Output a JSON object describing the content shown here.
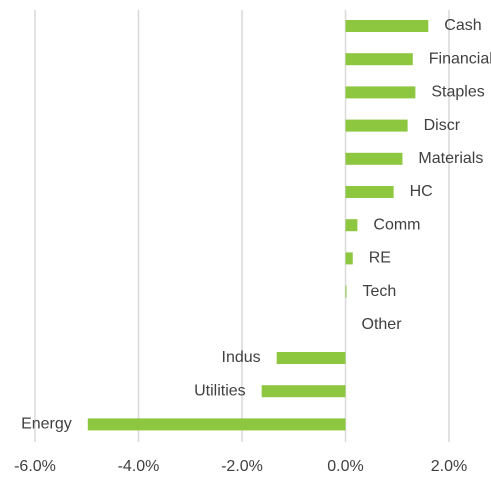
{
  "chart_data": {
    "type": "bar",
    "orientation": "horizontal",
    "categories": [
      "Cash",
      "Financials",
      "Staples",
      "Discr",
      "Materials",
      "HC",
      "Comm",
      "RE",
      "Tech",
      "Other",
      "Indus",
      "Utilities",
      "Energy"
    ],
    "values": [
      1.6,
      1.3,
      1.35,
      1.2,
      1.1,
      0.93,
      0.23,
      0.14,
      0.02,
      0,
      -1.33,
      -1.62,
      -4.98
    ],
    "color": "#8dc63f",
    "xlim": [
      -6,
      2
    ],
    "xticks": [
      {
        "value": -6,
        "label": "-6.0%"
      },
      {
        "value": -4,
        "label": "-4.0%"
      },
      {
        "value": -2,
        "label": "-2.0%"
      },
      {
        "value": 0,
        "label": "0.0%"
      },
      {
        "value": 2,
        "label": "2.0%"
      }
    ],
    "grid": true
  }
}
